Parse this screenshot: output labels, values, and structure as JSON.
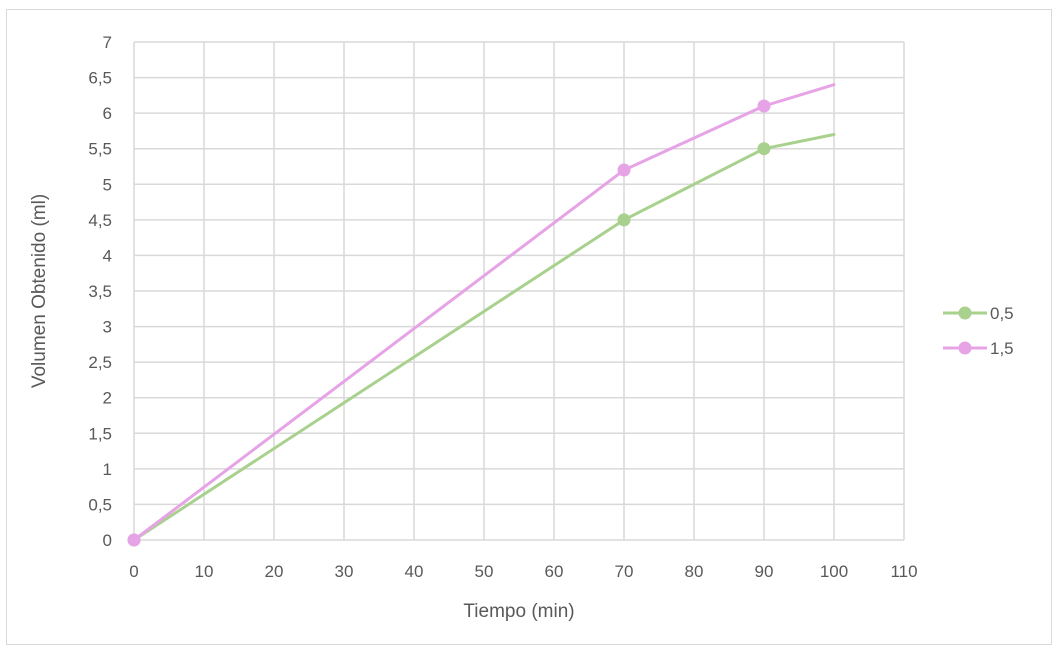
{
  "chart_data": {
    "type": "line",
    "title": "",
    "xlabel": "Tiempo (min)",
    "ylabel": "Volumen Obtenido (ml)",
    "xlim": [
      0,
      110
    ],
    "ylim": [
      0,
      7
    ],
    "x_ticks": [
      "0",
      "10",
      "20",
      "30",
      "40",
      "50",
      "60",
      "70",
      "80",
      "90",
      "100",
      "110"
    ],
    "y_ticks": [
      "0",
      "0,5",
      "1",
      "1,5",
      "2",
      "2,5",
      "3",
      "3,5",
      "4",
      "4,5",
      "5",
      "5,5",
      "6",
      "6,5",
      "7"
    ],
    "grid": true,
    "legend_position": "right",
    "series": [
      {
        "name": "0,5",
        "color": "#a9d18e",
        "points": [
          {
            "x": 0,
            "y": 0,
            "marker": true
          },
          {
            "x": 70,
            "y": 4.5,
            "marker": true
          },
          {
            "x": 90,
            "y": 5.5,
            "marker": true
          },
          {
            "x": 100,
            "y": 5.7,
            "marker": false
          }
        ]
      },
      {
        "name": "1,5",
        "color": "#e6a3e6",
        "points": [
          {
            "x": 0,
            "y": 0,
            "marker": true
          },
          {
            "x": 70,
            "y": 5.2,
            "marker": true
          },
          {
            "x": 90,
            "y": 6.1,
            "marker": true
          },
          {
            "x": 100,
            "y": 6.4,
            "marker": false
          }
        ]
      }
    ]
  }
}
